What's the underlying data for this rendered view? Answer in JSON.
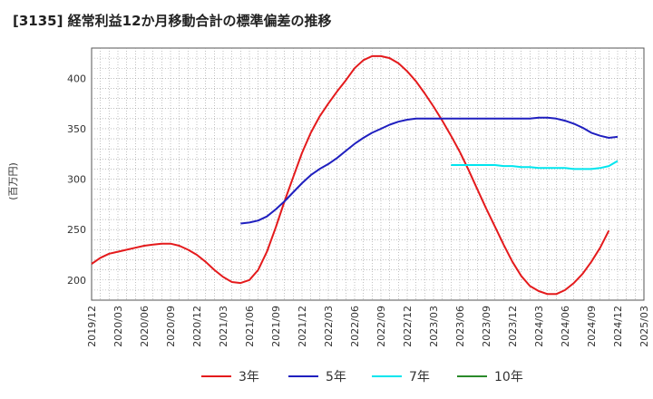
{
  "chart_data": {
    "type": "line",
    "title": "[3135]  経常利益12か月移動合計の標準偏差の推移",
    "ylabel": "(百万円)",
    "xlabel": "",
    "ylim": [
      180,
      430
    ],
    "yticks": [
      200,
      250,
      300,
      350,
      400
    ],
    "x_ticks": [
      "2019/12",
      "2020/03",
      "2020/06",
      "2020/09",
      "2020/12",
      "2021/03",
      "2021/06",
      "2021/09",
      "2021/12",
      "2022/03",
      "2022/06",
      "2022/09",
      "2022/12",
      "2023/03",
      "2023/06",
      "2023/09",
      "2023/12",
      "2024/03",
      "2024/06",
      "2024/09",
      "2024/12",
      "2025/03"
    ],
    "grid": true,
    "legend_position": "bottom",
    "colors": {
      "3年": "#e41a1c",
      "5年": "#1f1fbf",
      "7年": "#00e5ee",
      "10年": "#2a8a2a"
    },
    "series": [
      {
        "name": "3年",
        "x": [
          "2019/12",
          "2020/01",
          "2020/02",
          "2020/03",
          "2020/04",
          "2020/05",
          "2020/06",
          "2020/07",
          "2020/08",
          "2020/09",
          "2020/10",
          "2020/11",
          "2020/12",
          "2021/01",
          "2021/02",
          "2021/03",
          "2021/04",
          "2021/05",
          "2021/06",
          "2021/07",
          "2021/08",
          "2021/09",
          "2021/10",
          "2021/11",
          "2021/12",
          "2022/01",
          "2022/02",
          "2022/03",
          "2022/04",
          "2022/05",
          "2022/06",
          "2022/07",
          "2022/08",
          "2022/09",
          "2022/10",
          "2022/11",
          "2022/12",
          "2023/01",
          "2023/02",
          "2023/03",
          "2023/04",
          "2023/05",
          "2023/06",
          "2023/07",
          "2023/08",
          "2023/09",
          "2023/10",
          "2023/11",
          "2023/12",
          "2024/01",
          "2024/02",
          "2024/03",
          "2024/04",
          "2024/05",
          "2024/06",
          "2024/07",
          "2024/08",
          "2024/09",
          "2024/10",
          "2024/11",
          "2024/12"
        ],
        "values": [
          216,
          222,
          226,
          228,
          230,
          232,
          234,
          235,
          236,
          236,
          234,
          230,
          225,
          218,
          210,
          203,
          198,
          197,
          200,
          210,
          228,
          252,
          278,
          302,
          326,
          346,
          362,
          375,
          387,
          398,
          410,
          418,
          422,
          422,
          420,
          415,
          407,
          397,
          385,
          372,
          358,
          343,
          327,
          309,
          290,
          271,
          253,
          235,
          218,
          204,
          194,
          189,
          186,
          186,
          190,
          197,
          206,
          218,
          232,
          249,
          null
        ]
      },
      {
        "name": "5年",
        "x": [
          "2021/05",
          "2021/06",
          "2021/07",
          "2021/08",
          "2021/09",
          "2021/10",
          "2021/11",
          "2021/12",
          "2022/01",
          "2022/02",
          "2022/03",
          "2022/04",
          "2022/05",
          "2022/06",
          "2022/07",
          "2022/08",
          "2022/09",
          "2022/10",
          "2022/11",
          "2022/12",
          "2023/01",
          "2023/02",
          "2023/03",
          "2023/04",
          "2023/05",
          "2023/06",
          "2023/07",
          "2023/08",
          "2023/09",
          "2023/10",
          "2023/11",
          "2023/12",
          "2024/01",
          "2024/02",
          "2024/03",
          "2024/04",
          "2024/05",
          "2024/06",
          "2024/07",
          "2024/08",
          "2024/09",
          "2024/10",
          "2024/11",
          "2024/12"
        ],
        "values": [
          256,
          257,
          259,
          263,
          270,
          278,
          287,
          296,
          304,
          310,
          315,
          321,
          328,
          335,
          341,
          346,
          350,
          354,
          357,
          359,
          360,
          360,
          360,
          360,
          360,
          360,
          360,
          360,
          360,
          360,
          360,
          360,
          360,
          360,
          361,
          361,
          360,
          358,
          355,
          351,
          346,
          343,
          341,
          342
        ]
      },
      {
        "name": "7年",
        "x": [
          "2023/05",
          "2023/06",
          "2023/07",
          "2023/08",
          "2023/09",
          "2023/10",
          "2023/11",
          "2023/12",
          "2024/01",
          "2024/02",
          "2024/03",
          "2024/04",
          "2024/05",
          "2024/06",
          "2024/07",
          "2024/08",
          "2024/09",
          "2024/10",
          "2024/11",
          "2024/12"
        ],
        "values": [
          314,
          314,
          314,
          314,
          314,
          314,
          313,
          313,
          312,
          312,
          311,
          311,
          311,
          311,
          310,
          310,
          310,
          311,
          313,
          318
        ]
      },
      {
        "name": "10年",
        "x": [],
        "values": []
      }
    ]
  }
}
